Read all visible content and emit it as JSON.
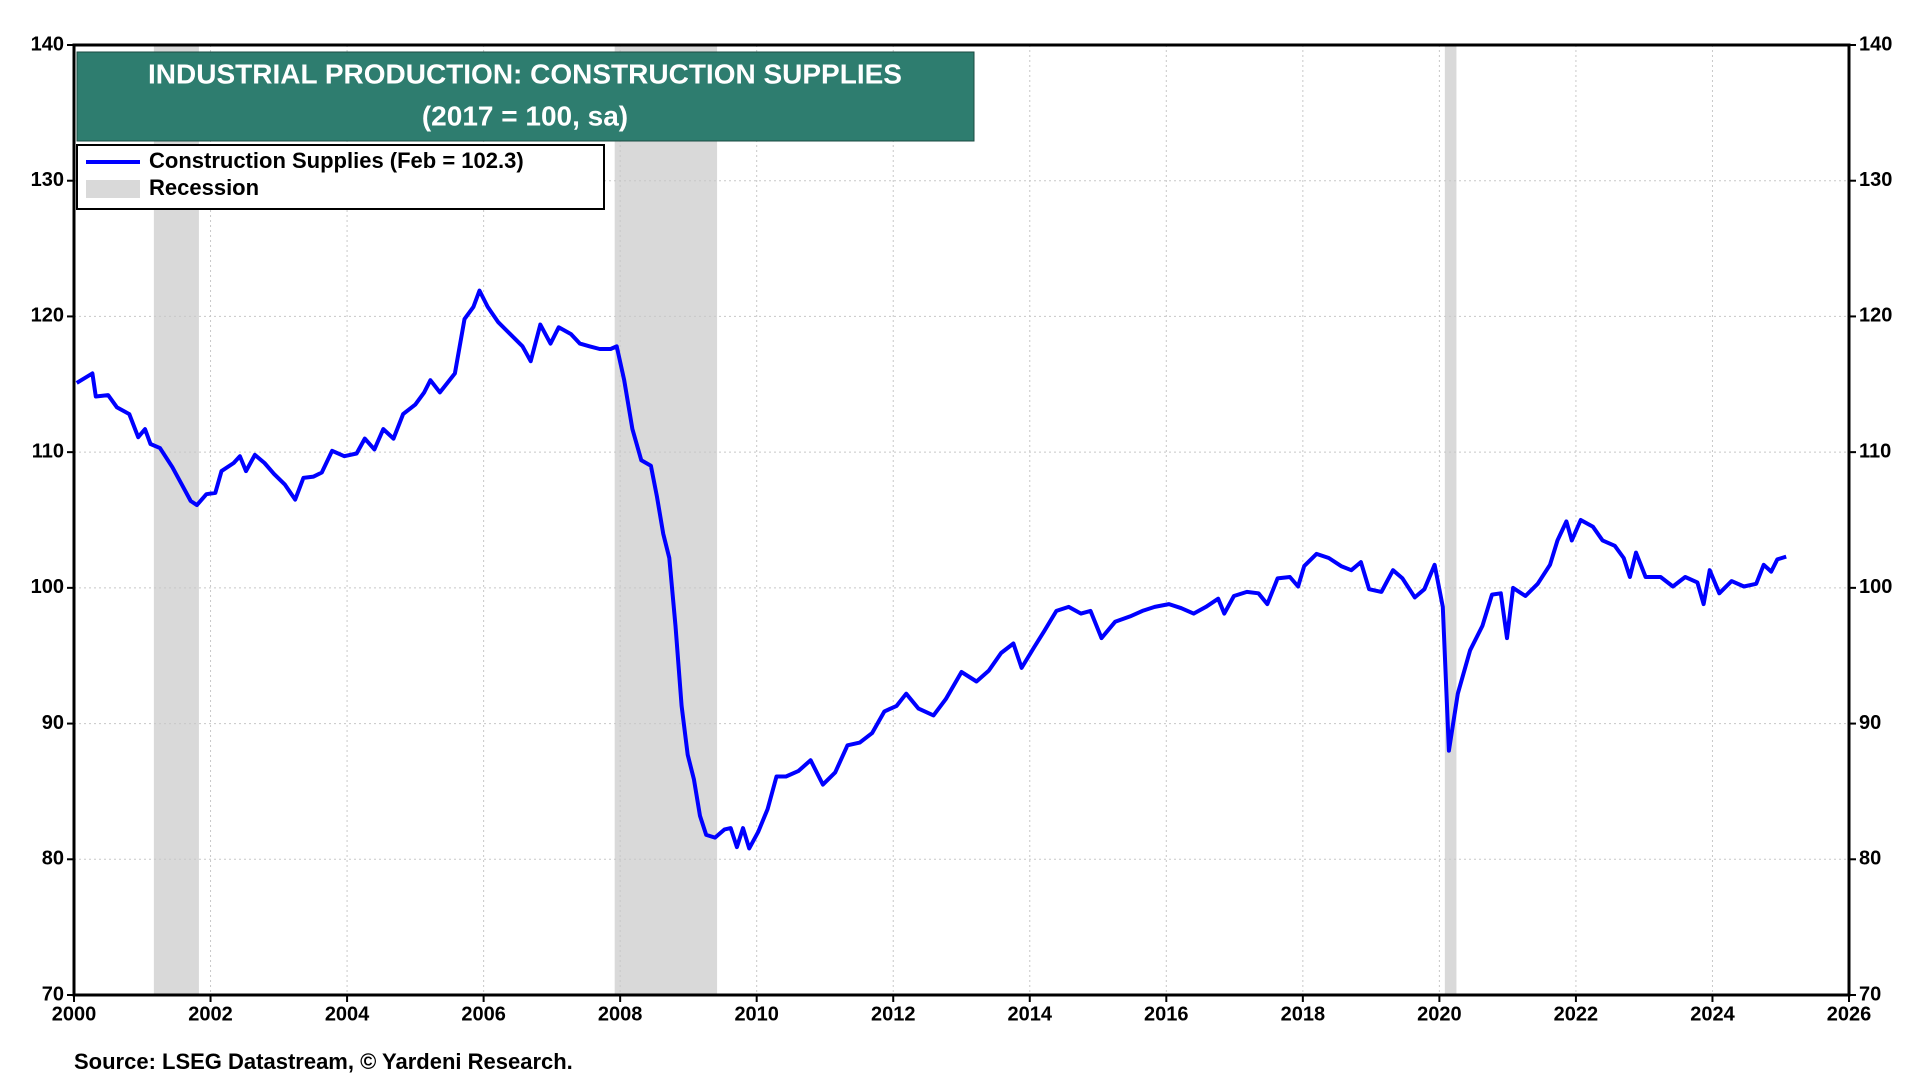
{
  "chart_data": {
    "type": "line",
    "title": "INDUSTRIAL PRODUCTION: CONSTRUCTION SUPPLIES",
    "subtitle": "(2017 = 100, sa)",
    "source": "Source: LSEG Datastream, © Yardeni Research.",
    "xlim": [
      2000,
      2026
    ],
    "xticks": [
      2000,
      2002,
      2004,
      2006,
      2008,
      2010,
      2012,
      2014,
      2016,
      2018,
      2020,
      2022,
      2024,
      2026
    ],
    "ylim": [
      70,
      140
    ],
    "yticks": [
      70,
      80,
      90,
      100,
      110,
      120,
      130,
      140
    ],
    "grid": true,
    "legend": "top-left",
    "recession": {
      "name": "Recession",
      "color": "#d9d9d9",
      "spans": [
        [
          2001.17,
          2001.83
        ],
        [
          2007.92,
          2009.42
        ],
        [
          2020.08,
          2020.25
        ]
      ]
    },
    "x": [
      2000.04,
      2000.27,
      2000.32,
      2000.5,
      2000.63,
      2000.81,
      2000.94,
      2001.04,
      2001.12,
      2001.26,
      2001.44,
      2001.58,
      2001.71,
      2001.8,
      2001.94,
      2002.07,
      2002.16,
      2002.34,
      2002.43,
      2002.52,
      2002.65,
      2002.79,
      2002.93,
      2003.09,
      2003.24,
      2003.36,
      2003.51,
      2003.63,
      2003.78,
      2003.96,
      2004.14,
      2004.26,
      2004.4,
      2004.53,
      2004.68,
      2004.82,
      2005.0,
      2005.13,
      2005.22,
      2005.36,
      2005.58,
      2005.72,
      2005.85,
      2005.94,
      2006.06,
      2006.21,
      2006.39,
      2006.57,
      2006.69,
      2006.83,
      2006.98,
      2007.1,
      2007.28,
      2007.41,
      2007.55,
      2007.7,
      2007.86,
      2007.95,
      2008.06,
      2008.18,
      2008.31,
      2008.45,
      2008.54,
      2008.63,
      2008.72,
      2008.81,
      2008.9,
      2008.99,
      2009.08,
      2009.17,
      2009.26,
      2009.39,
      2009.53,
      2009.62,
      2009.71,
      2009.8,
      2009.89,
      2010.02,
      2010.16,
      2010.29,
      2010.43,
      2010.61,
      2010.79,
      2010.97,
      2011.15,
      2011.33,
      2011.51,
      2011.69,
      2011.87,
      2012.05,
      2012.19,
      2012.37,
      2012.59,
      2012.77,
      2013.0,
      2013.22,
      2013.4,
      2013.58,
      2013.76,
      2013.88,
      2014.06,
      2014.21,
      2014.39,
      2014.57,
      2014.75,
      2014.89,
      2015.05,
      2015.25,
      2015.47,
      2015.65,
      2015.83,
      2016.04,
      2016.22,
      2016.4,
      2016.58,
      2016.76,
      2016.85,
      2016.99,
      2017.18,
      2017.35,
      2017.48,
      2017.63,
      2017.81,
      2017.93,
      2018.02,
      2018.2,
      2018.38,
      2018.56,
      2018.71,
      2018.85,
      2018.97,
      2019.15,
      2019.32,
      2019.46,
      2019.64,
      2019.78,
      2019.93,
      2020.05,
      2020.14,
      2020.27,
      2020.45,
      2020.63,
      2020.77,
      2020.9,
      2020.99,
      2021.08,
      2021.26,
      2021.44,
      2021.62,
      2021.73,
      2021.86,
      2021.94,
      2022.07,
      2022.25,
      2022.39,
      2022.57,
      2022.7,
      2022.79,
      2022.88,
      2023.02,
      2023.24,
      2023.42,
      2023.6,
      2023.78,
      2023.87,
      2023.96,
      2024.1,
      2024.28,
      2024.46,
      2024.64,
      2024.75,
      2024.86,
      2024.95,
      2025.08
    ],
    "series": [
      {
        "name": "Construction Supplies (Feb = 102.3)",
        "color": "#0000ff",
        "values": [
          115.1,
          115.8,
          114.1,
          114.2,
          113.3,
          112.8,
          111.1,
          111.7,
          110.6,
          110.3,
          108.9,
          107.6,
          106.4,
          106.1,
          106.9,
          107.0,
          108.6,
          109.2,
          109.7,
          108.6,
          109.8,
          109.2,
          108.4,
          107.6,
          106.5,
          108.1,
          108.2,
          108.5,
          110.1,
          109.7,
          109.9,
          111.0,
          110.2,
          111.7,
          111.0,
          112.8,
          113.5,
          114.4,
          115.3,
          114.4,
          115.8,
          119.8,
          120.7,
          121.9,
          120.7,
          119.6,
          118.7,
          117.8,
          116.7,
          119.4,
          118.0,
          119.2,
          118.7,
          118.0,
          117.8,
          117.6,
          117.6,
          117.8,
          115.3,
          111.7,
          109.4,
          109.0,
          106.7,
          104.0,
          102.2,
          97.2,
          91.3,
          87.7,
          85.9,
          83.2,
          81.8,
          81.6,
          82.2,
          82.3,
          80.9,
          82.3,
          80.8,
          82.0,
          83.7,
          86.1,
          86.1,
          86.5,
          87.3,
          85.5,
          86.4,
          88.4,
          88.6,
          89.3,
          90.9,
          91.3,
          92.2,
          91.1,
          90.6,
          91.8,
          93.8,
          93.1,
          93.9,
          95.2,
          95.9,
          94.1,
          95.6,
          96.8,
          98.3,
          98.6,
          98.1,
          98.3,
          96.3,
          97.5,
          97.9,
          98.3,
          98.6,
          98.8,
          98.5,
          98.1,
          98.6,
          99.2,
          98.1,
          99.4,
          99.7,
          99.6,
          98.8,
          100.7,
          100.8,
          100.1,
          101.6,
          102.5,
          102.2,
          101.6,
          101.3,
          101.9,
          99.9,
          99.7,
          101.3,
          100.7,
          99.3,
          99.9,
          101.7,
          98.6,
          88.0,
          92.2,
          95.4,
          97.2,
          99.5,
          99.6,
          96.3,
          100.0,
          99.4,
          100.3,
          101.7,
          103.5,
          104.9,
          103.5,
          105.0,
          104.5,
          103.5,
          103.1,
          102.2,
          100.8,
          102.6,
          100.8,
          100.8,
          100.1,
          100.8,
          100.4,
          98.8,
          101.3,
          99.6,
          100.5,
          100.1,
          100.3,
          101.7,
          101.2,
          102.1,
          102.3
        ]
      }
    ]
  }
}
